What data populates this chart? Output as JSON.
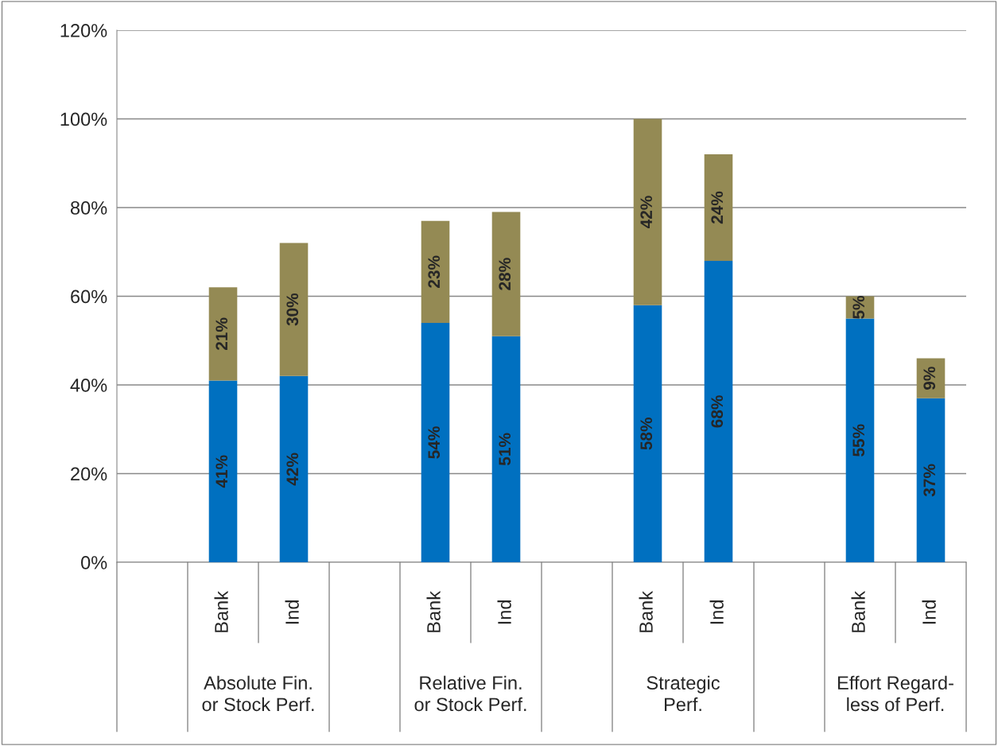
{
  "chart_data": {
    "type": "bar",
    "stacked": true,
    "categories": [
      null,
      "Bank",
      "Ind",
      null,
      "Bank",
      "Ind",
      null,
      "Bank",
      "Ind",
      null,
      "Bank",
      "Ind"
    ],
    "series": [
      {
        "color": "#0070c0",
        "values": [
          null,
          41,
          42,
          null,
          54,
          51,
          null,
          58,
          68,
          null,
          55,
          37
        ],
        "value_labels": [
          null,
          "41%",
          "42%",
          null,
          "54%",
          "51%",
          null,
          "58%",
          "68%",
          null,
          "55%",
          "37%"
        ]
      },
      {
        "color": "#948a54",
        "values": [
          null,
          21,
          30,
          null,
          23,
          28,
          null,
          42,
          24,
          null,
          5,
          9
        ],
        "value_labels": [
          null,
          "21%",
          "30%",
          null,
          "23%",
          "28%",
          null,
          "42%",
          "24%",
          null,
          "5%",
          "9%"
        ]
      }
    ],
    "annotations": [
      "Absolute Fin.\nor Stock Perf.",
      "Relative Fin.\nor Stock Perf.",
      "Strategic\nPerf.",
      "Effort Regard-\nless of Perf."
    ],
    "ylim": [
      0,
      120
    ],
    "yticks": [
      {
        "value": 0,
        "label": "0%"
      },
      {
        "value": 20,
        "label": "20%"
      },
      {
        "value": 40,
        "label": "40%"
      },
      {
        "value": 60,
        "label": "60%"
      },
      {
        "value": 80,
        "label": "80%"
      },
      {
        "value": 100,
        "label": "100%"
      },
      {
        "value": 120,
        "label": "120%"
      }
    ],
    "grid": "y"
  }
}
